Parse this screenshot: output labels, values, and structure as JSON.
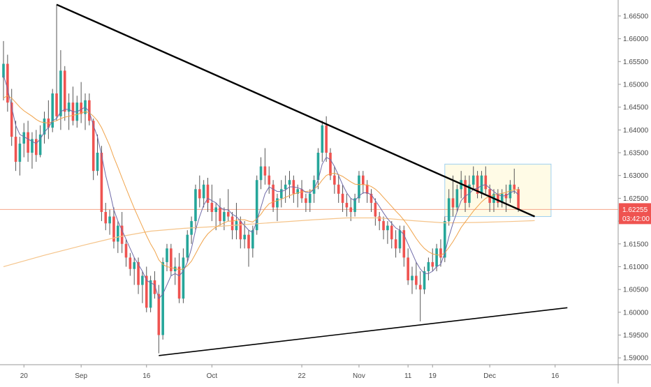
{
  "chart_data": {
    "type": "candlestick",
    "grid": false,
    "colors": {
      "up": "#26a69a",
      "down": "#ef5350",
      "wick": "#555555",
      "ma_fast": "#6f6aa8",
      "ma_slow": "#f0a34a",
      "ma_long": "#f5c48a",
      "trendline": "#000000",
      "box_fill": "#fffbe6",
      "box_border": "#9ecff0",
      "price_line": "#f4a58a",
      "price_badge": "#ef5350"
    },
    "x_ticks": [
      "20",
      "Sep",
      "16",
      "Oct",
      "22",
      "Nov",
      "11",
      "19",
      "Dec",
      "16"
    ],
    "y_ticks": [
      "1.66500",
      "1.66000",
      "1.65500",
      "1.65000",
      "1.64500",
      "1.64000",
      "1.63500",
      "1.63000",
      "1.62500",
      "1.62000",
      "1.61500",
      "1.61000",
      "1.60500",
      "1.60000",
      "1.59500",
      "1.59000"
    ],
    "ylim": [
      1.5885,
      1.6685
    ],
    "x_tick_index": [
      5,
      19,
      35,
      51,
      73,
      87,
      99,
      105,
      119,
      135
    ],
    "last_price": "1.62255",
    "countdown": "03:42:00",
    "candles": [
      [
        1.6515,
        1.6595,
        1.6465,
        1.6545
      ],
      [
        1.6545,
        1.6565,
        1.644,
        1.646
      ],
      [
        1.646,
        1.649,
        1.6365,
        1.6385
      ],
      [
        1.6385,
        1.642,
        1.631,
        1.633
      ],
      [
        1.633,
        1.6385,
        1.63,
        1.637
      ],
      [
        1.637,
        1.6415,
        1.634,
        1.6395
      ],
      [
        1.6395,
        1.642,
        1.633,
        1.635
      ],
      [
        1.635,
        1.6395,
        1.6315,
        1.638
      ],
      [
        1.638,
        1.64,
        1.633,
        1.6345
      ],
      [
        1.6345,
        1.641,
        1.634,
        1.639
      ],
      [
        1.639,
        1.644,
        1.637,
        1.6425
      ],
      [
        1.6425,
        1.6465,
        1.638,
        1.6405
      ],
      [
        1.6405,
        1.649,
        1.6395,
        1.648
      ],
      [
        1.648,
        1.6675,
        1.642,
        1.643
      ],
      [
        1.643,
        1.6575,
        1.64,
        1.653
      ],
      [
        1.653,
        1.654,
        1.642,
        1.644
      ],
      [
        1.644,
        1.648,
        1.64,
        1.646
      ],
      [
        1.646,
        1.6495,
        1.641,
        1.642
      ],
      [
        1.642,
        1.6475,
        1.6405,
        1.646
      ],
      [
        1.646,
        1.6505,
        1.6415,
        1.6435
      ],
      [
        1.6435,
        1.648,
        1.64,
        1.6465
      ],
      [
        1.6465,
        1.648,
        1.641,
        1.642
      ],
      [
        1.642,
        1.6425,
        1.629,
        1.631
      ],
      [
        1.631,
        1.639,
        1.63,
        1.635
      ],
      [
        1.635,
        1.6365,
        1.62,
        1.622
      ],
      [
        1.622,
        1.624,
        1.618,
        1.6195
      ],
      [
        1.6195,
        1.6225,
        1.617,
        1.621
      ],
      [
        1.621,
        1.623,
        1.614,
        1.6155
      ],
      [
        1.6155,
        1.62,
        1.613,
        1.619
      ],
      [
        1.619,
        1.622,
        1.613,
        1.615
      ],
      [
        1.615,
        1.616,
        1.61,
        1.612
      ],
      [
        1.612,
        1.613,
        1.608,
        1.6095
      ],
      [
        1.6095,
        1.612,
        1.606,
        1.611
      ],
      [
        1.611,
        1.612,
        1.604,
        1.606
      ],
      [
        1.606,
        1.609,
        1.602,
        1.608
      ],
      [
        1.608,
        1.61,
        1.6,
        1.601
      ],
      [
        1.601,
        1.608,
        1.6,
        1.607
      ],
      [
        1.607,
        1.609,
        1.603,
        1.604
      ],
      [
        1.604,
        1.606,
        1.591,
        1.595
      ],
      [
        1.595,
        1.612,
        1.594,
        1.611
      ],
      [
        1.611,
        1.615,
        1.609,
        1.614
      ],
      [
        1.614,
        1.615,
        1.608,
        1.609
      ],
      [
        1.609,
        1.612,
        1.606,
        1.61
      ],
      [
        1.61,
        1.613,
        1.602,
        1.603
      ],
      [
        1.603,
        1.614,
        1.602,
        1.612
      ],
      [
        1.612,
        1.618,
        1.611,
        1.617
      ],
      [
        1.617,
        1.621,
        1.615,
        1.62
      ],
      [
        1.62,
        1.628,
        1.618,
        1.627
      ],
      [
        1.627,
        1.63,
        1.623,
        1.625
      ],
      [
        1.625,
        1.629,
        1.623,
        1.628
      ],
      [
        1.628,
        1.6295,
        1.622,
        1.624
      ],
      [
        1.624,
        1.628,
        1.62,
        1.622
      ],
      [
        1.622,
        1.624,
        1.618,
        1.623
      ],
      [
        1.623,
        1.625,
        1.619,
        1.62
      ],
      [
        1.62,
        1.623,
        1.618,
        1.622
      ],
      [
        1.622,
        1.627,
        1.62,
        1.621
      ],
      [
        1.621,
        1.622,
        1.616,
        1.618
      ],
      [
        1.618,
        1.624,
        1.616,
        1.62
      ],
      [
        1.62,
        1.621,
        1.614,
        1.616
      ],
      [
        1.616,
        1.62,
        1.614,
        1.617
      ],
      [
        1.617,
        1.618,
        1.61,
        1.614
      ],
      [
        1.614,
        1.619,
        1.612,
        1.618
      ],
      [
        1.618,
        1.63,
        1.617,
        1.629
      ],
      [
        1.629,
        1.634,
        1.627,
        1.632
      ],
      [
        1.632,
        1.636,
        1.628,
        1.63
      ],
      [
        1.63,
        1.632,
        1.626,
        1.628
      ],
      [
        1.628,
        1.629,
        1.622,
        1.623
      ],
      [
        1.623,
        1.626,
        1.62,
        1.625
      ],
      [
        1.625,
        1.629,
        1.623,
        1.627
      ],
      [
        1.627,
        1.63,
        1.624,
        1.628
      ],
      [
        1.628,
        1.631,
        1.625,
        1.629
      ],
      [
        1.629,
        1.63,
        1.624,
        1.626
      ],
      [
        1.626,
        1.628,
        1.623,
        1.627
      ],
      [
        1.627,
        1.629,
        1.624,
        1.625
      ],
      [
        1.625,
        1.626,
        1.622,
        1.624
      ],
      [
        1.624,
        1.627,
        1.622,
        1.626
      ],
      [
        1.626,
        1.63,
        1.624,
        1.629
      ],
      [
        1.629,
        1.636,
        1.627,
        1.635
      ],
      [
        1.635,
        1.642,
        1.633,
        1.641
      ],
      [
        1.641,
        1.643,
        1.633,
        1.635
      ],
      [
        1.635,
        1.636,
        1.629,
        1.63
      ],
      [
        1.63,
        1.632,
        1.626,
        1.628
      ],
      [
        1.628,
        1.63,
        1.624,
        1.626
      ],
      [
        1.626,
        1.628,
        1.622,
        1.624
      ],
      [
        1.624,
        1.626,
        1.621,
        1.623
      ],
      [
        1.623,
        1.625,
        1.62,
        1.622
      ],
      [
        1.622,
        1.626,
        1.621,
        1.625
      ],
      [
        1.625,
        1.631,
        1.624,
        1.63
      ],
      [
        1.63,
        1.631,
        1.626,
        1.628
      ],
      [
        1.628,
        1.629,
        1.624,
        1.626
      ],
      [
        1.626,
        1.627,
        1.622,
        1.624
      ],
      [
        1.624,
        1.625,
        1.619,
        1.621
      ],
      [
        1.621,
        1.622,
        1.618,
        1.62
      ],
      [
        1.62,
        1.621,
        1.616,
        1.618
      ],
      [
        1.618,
        1.62,
        1.615,
        1.619
      ],
      [
        1.619,
        1.62,
        1.614,
        1.616
      ],
      [
        1.616,
        1.618,
        1.612,
        1.614
      ],
      [
        1.614,
        1.619,
        1.613,
        1.618
      ],
      [
        1.618,
        1.619,
        1.61,
        1.612
      ],
      [
        1.612,
        1.614,
        1.606,
        1.607
      ],
      [
        1.607,
        1.61,
        1.604,
        1.608
      ],
      [
        1.608,
        1.611,
        1.605,
        1.606
      ],
      [
        1.606,
        1.609,
        1.598,
        1.605
      ],
      [
        1.605,
        1.61,
        1.604,
        1.609
      ],
      [
        1.609,
        1.612,
        1.607,
        1.611
      ],
      [
        1.611,
        1.614,
        1.609,
        1.61
      ],
      [
        1.61,
        1.615,
        1.609,
        1.614
      ],
      [
        1.614,
        1.616,
        1.61,
        1.612
      ],
      [
        1.612,
        1.621,
        1.611,
        1.62
      ],
      [
        1.62,
        1.627,
        1.619,
        1.625
      ],
      [
        1.625,
        1.63,
        1.621,
        1.623
      ],
      [
        1.623,
        1.628,
        1.622,
        1.627
      ],
      [
        1.627,
        1.631,
        1.625,
        1.629
      ],
      [
        1.629,
        1.63,
        1.622,
        1.624
      ],
      [
        1.624,
        1.63,
        1.623,
        1.628
      ],
      [
        1.628,
        1.632,
        1.627,
        1.63
      ],
      [
        1.63,
        1.631,
        1.625,
        1.626
      ],
      [
        1.626,
        1.631,
        1.625,
        1.63
      ],
      [
        1.63,
        1.632,
        1.626,
        1.627
      ],
      [
        1.627,
        1.628,
        1.622,
        1.624
      ],
      [
        1.624,
        1.627,
        1.622,
        1.626
      ],
      [
        1.626,
        1.627,
        1.623,
        1.624
      ],
      [
        1.624,
        1.627,
        1.623,
        1.626
      ],
      [
        1.626,
        1.628,
        1.622,
        1.625
      ],
      [
        1.625,
        1.629,
        1.624,
        1.628
      ],
      [
        1.628,
        1.6315,
        1.626,
        1.627
      ],
      [
        1.627,
        1.6275,
        1.622,
        1.6226
      ]
    ],
    "ma_fast": [
      1.652,
      1.649,
      1.645,
      1.641,
      1.639,
      1.6385,
      1.638,
      1.6375,
      1.637,
      1.638,
      1.6395,
      1.6405,
      1.642,
      1.6425,
      1.644,
      1.6445,
      1.6445,
      1.644,
      1.644,
      1.6445,
      1.645,
      1.644,
      1.641,
      1.6385,
      1.6345,
      1.63,
      1.6265,
      1.6225,
      1.62,
      1.618,
      1.616,
      1.614,
      1.612,
      1.6105,
      1.609,
      1.607,
      1.6065,
      1.606,
      1.603,
      1.604,
      1.606,
      1.608,
      1.6085,
      1.608,
      1.609,
      1.611,
      1.614,
      1.618,
      1.621,
      1.6235,
      1.625,
      1.6245,
      1.624,
      1.623,
      1.6225,
      1.6225,
      1.6215,
      1.621,
      1.62,
      1.619,
      1.618,
      1.6175,
      1.62,
      1.623,
      1.626,
      1.6275,
      1.627,
      1.6265,
      1.6265,
      1.6268,
      1.6275,
      1.6275,
      1.6273,
      1.627,
      1.6263,
      1.6262,
      1.627,
      1.629,
      1.6325,
      1.634,
      1.6335,
      1.632,
      1.63,
      1.628,
      1.6262,
      1.625,
      1.6245,
      1.6255,
      1.6262,
      1.6262,
      1.6258,
      1.6245,
      1.6232,
      1.6218,
      1.6205,
      1.6195,
      1.6185,
      1.618,
      1.617,
      1.615,
      1.613,
      1.611,
      1.6095,
      1.6085,
      1.6085,
      1.609,
      1.61,
      1.6105,
      1.613,
      1.6165,
      1.6195,
      1.622,
      1.6245,
      1.6255,
      1.626,
      1.627,
      1.6272,
      1.6278,
      1.628,
      1.6272,
      1.6265,
      1.6258,
      1.6255,
      1.6256,
      1.6262,
      1.6266,
      1.6258
    ],
    "ma_slow": [
      1.647,
      1.6475,
      1.647,
      1.646,
      1.645,
      1.6442,
      1.6436,
      1.643,
      1.6423,
      1.6418,
      1.6416,
      1.6415,
      1.6418,
      1.642,
      1.6425,
      1.6428,
      1.643,
      1.6432,
      1.6434,
      1.6437,
      1.644,
      1.6438,
      1.643,
      1.642,
      1.6405,
      1.6385,
      1.6365,
      1.634,
      1.6318,
      1.6295,
      1.6272,
      1.625,
      1.6228,
      1.6208,
      1.6188,
      1.6168,
      1.615,
      1.6135,
      1.6115,
      1.6105,
      1.61,
      1.6098,
      1.6096,
      1.6093,
      1.6095,
      1.6102,
      1.6112,
      1.6128,
      1.6145,
      1.616,
      1.6172,
      1.618,
      1.6187,
      1.6192,
      1.6196,
      1.62,
      1.62,
      1.6202,
      1.6203,
      1.6203,
      1.62,
      1.6198,
      1.6205,
      1.6215,
      1.6228,
      1.6238,
      1.6242,
      1.6245,
      1.6248,
      1.6252,
      1.6256,
      1.6259,
      1.6262,
      1.6264,
      1.6265,
      1.6266,
      1.627,
      1.6278,
      1.629,
      1.63,
      1.6304,
      1.6305,
      1.6302,
      1.6298,
      1.6292,
      1.6286,
      1.6281,
      1.628,
      1.628,
      1.6279,
      1.6276,
      1.627,
      1.6262,
      1.6252,
      1.6242,
      1.6232,
      1.6222,
      1.6213,
      1.6202,
      1.619,
      1.6176,
      1.6162,
      1.615,
      1.614,
      1.6133,
      1.6128,
      1.6126,
      1.6125,
      1.613,
      1.6142,
      1.6155,
      1.617,
      1.6186,
      1.6198,
      1.621,
      1.6222,
      1.6232,
      1.6242,
      1.625,
      1.6254,
      1.6257,
      1.6259,
      1.6261,
      1.6263,
      1.6266,
      1.6269,
      1.6268
    ],
    "ma_long": [
      [
        0,
        1.61
      ],
      [
        10,
        1.6125
      ],
      [
        20,
        1.6148
      ],
      [
        28,
        1.6165
      ],
      [
        36,
        1.6178
      ],
      [
        44,
        1.6184
      ],
      [
        52,
        1.6188
      ],
      [
        60,
        1.6193
      ],
      [
        68,
        1.6198
      ],
      [
        76,
        1.6203
      ],
      [
        84,
        1.6207
      ],
      [
        92,
        1.6207
      ],
      [
        100,
        1.6201
      ],
      [
        108,
        1.6196
      ],
      [
        116,
        1.6197
      ],
      [
        124,
        1.6199
      ],
      [
        130,
        1.6201
      ]
    ],
    "trendlines": [
      {
        "from": [
          13,
          1.6675
        ],
        "to": [
          130,
          1.621
        ]
      },
      {
        "from": [
          38,
          1.5905
        ],
        "to": [
          138,
          1.601
        ]
      }
    ],
    "box": {
      "x0": 108,
      "x1": 134,
      "y0": 1.621,
      "y1": 1.6325
    }
  }
}
